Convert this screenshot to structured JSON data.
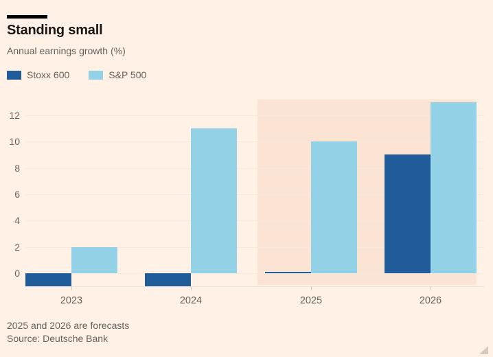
{
  "header": {
    "title": "Standing small",
    "subtitle": "Annual earnings growth (%)"
  },
  "chart_data": {
    "type": "bar",
    "title": "Standing small",
    "subtitle": "Annual earnings growth (%)",
    "categories": [
      "2023",
      "2024",
      "2025",
      "2026"
    ],
    "series": [
      {
        "name": "Stoxx 600",
        "color": "#1F5C99",
        "values": [
          -1,
          -1,
          0.1,
          9
        ]
      },
      {
        "name": "S&P 500",
        "color": "#93D1E6",
        "values": [
          2,
          11,
          10,
          13
        ]
      }
    ],
    "ylabel": "",
    "yticks": [
      0,
      2,
      4,
      6,
      8,
      10,
      12
    ],
    "ylim": [
      -1,
      13.2
    ],
    "grid": "horizontal",
    "legend_position": "top-left",
    "forecast_band": {
      "categories": [
        "2025",
        "2026"
      ],
      "note": "2025 and 2026 are forecasts"
    }
  },
  "footer": {
    "note": "2025 and 2026 are forecasts",
    "source": "Source: Deutsche Bank"
  },
  "colors": {
    "background": "#FFF1E5",
    "forecast_band": "#FBE4D3",
    "stoxx600": "#1F5C99",
    "sp500": "#93D1E6",
    "title_text": "#1A1614",
    "muted_text": "#66605B",
    "top_rule": "#000000",
    "gridline": "#F6E9DD",
    "axis_tick": "#D8CABD",
    "axis_line": "#EFE1D4"
  },
  "icons": {
    "resize_grip": "resize-grip-icon"
  }
}
